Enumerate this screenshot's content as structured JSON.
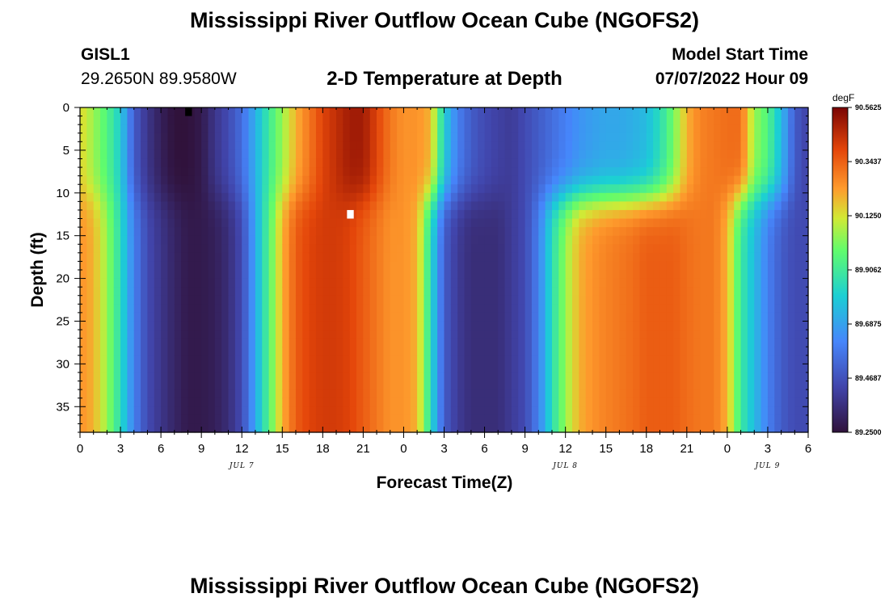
{
  "titles": {
    "main": "Mississippi River Outflow Ocean Cube (NGOFS2)",
    "repeat": "Mississippi River Outflow Ocean Cube (NGOFS2)"
  },
  "station": {
    "id": "GISL1",
    "coords": "29.2650N  89.9580W"
  },
  "plot_title": "2-D Temperature at Depth",
  "model": {
    "label": "Model Start Time",
    "start": "07/07/2022 Hour 09"
  },
  "chart_data": {
    "type": "heatmap",
    "title": "2-D Temperature at Depth",
    "xlabel": "Forecast Time(Z)",
    "ylabel": "Depth (ft)",
    "x_range_hours": [
      0,
      54
    ],
    "y_range": [
      0,
      38
    ],
    "y_inverted": true,
    "x_tick_labels": [
      "0",
      "3",
      "6",
      "9",
      "12",
      "15",
      "18",
      "21",
      "0",
      "3",
      "6",
      "9",
      "12",
      "15",
      "18",
      "21",
      "0",
      "3",
      "6"
    ],
    "y_tick_labels": [
      "0",
      "5",
      "10",
      "15",
      "20",
      "25",
      "30",
      "35"
    ],
    "date_labels": [
      {
        "text": "JUL 7",
        "hour": 12
      },
      {
        "text": "JUL 8",
        "hour": 36
      },
      {
        "text": "JUL 9",
        "hour": 51
      }
    ],
    "colorbar": {
      "unit": "degF",
      "min": 89.25,
      "max": 90.5625,
      "tick_labels": [
        "90.5625",
        "90.3437",
        "90.1250",
        "89.9062",
        "89.6875",
        "89.4687",
        "89.2500"
      ]
    },
    "temperature_profile": {
      "surface_hours": [
        0,
        2,
        3,
        4,
        5,
        6,
        7,
        8,
        9,
        10,
        11,
        12,
        13,
        14,
        15,
        16,
        17,
        18,
        19,
        20,
        21,
        22,
        23,
        24,
        25,
        26,
        27,
        28,
        29,
        30,
        31,
        32,
        33,
        34,
        35,
        36,
        37,
        38,
        39,
        40,
        41,
        42,
        43,
        44,
        45,
        46,
        47,
        48,
        49,
        50,
        51,
        52,
        53,
        54
      ],
      "surface_values": [
        90.15,
        89.95,
        89.8,
        89.5,
        89.38,
        89.3,
        89.25,
        89.25,
        89.28,
        89.38,
        89.45,
        89.55,
        89.72,
        89.9,
        90.05,
        90.2,
        90.3,
        90.4,
        90.45,
        90.5,
        90.5,
        90.4,
        90.3,
        90.25,
        90.25,
        90.2,
        89.8,
        89.6,
        89.5,
        89.45,
        89.42,
        89.4,
        89.45,
        89.5,
        89.55,
        89.6,
        89.65,
        89.68,
        89.7,
        89.7,
        89.72,
        89.75,
        89.85,
        90.0,
        90.2,
        90.28,
        90.3,
        90.32,
        90.32,
        90.05,
        89.95,
        89.75,
        89.5,
        89.42
      ],
      "subsurface_hours": [
        0,
        1,
        2,
        3,
        4,
        5,
        6,
        7,
        8,
        9,
        10,
        11,
        12,
        13,
        14,
        15,
        16,
        17,
        18,
        19,
        20,
        21,
        22,
        23,
        24,
        25,
        26,
        27,
        28,
        29,
        30,
        31,
        32,
        33,
        34,
        35,
        36,
        37,
        38,
        39,
        40,
        41,
        42,
        43,
        44,
        45,
        46,
        47,
        48,
        49,
        50,
        51,
        52,
        53,
        54
      ],
      "subsurface_values": [
        90.25,
        90.2,
        90.05,
        89.85,
        89.6,
        89.45,
        89.38,
        89.32,
        89.28,
        89.28,
        89.3,
        89.35,
        89.45,
        89.7,
        89.95,
        90.2,
        90.35,
        90.4,
        90.42,
        90.42,
        90.4,
        90.35,
        90.3,
        90.25,
        90.25,
        90.2,
        89.85,
        89.5,
        89.4,
        89.35,
        89.35,
        89.35,
        89.4,
        89.45,
        89.6,
        89.85,
        90.05,
        90.2,
        90.25,
        90.28,
        90.3,
        90.32,
        90.35,
        90.35,
        90.35,
        90.32,
        90.3,
        90.3,
        90.2,
        89.9,
        89.75,
        89.6,
        89.5,
        89.45,
        89.45
      ]
    },
    "highlight_cells": [
      {
        "hour": 20,
        "depth": 12,
        "color": "#ffffff"
      },
      {
        "hour": 8,
        "depth": 0,
        "color": "#000000"
      }
    ]
  }
}
